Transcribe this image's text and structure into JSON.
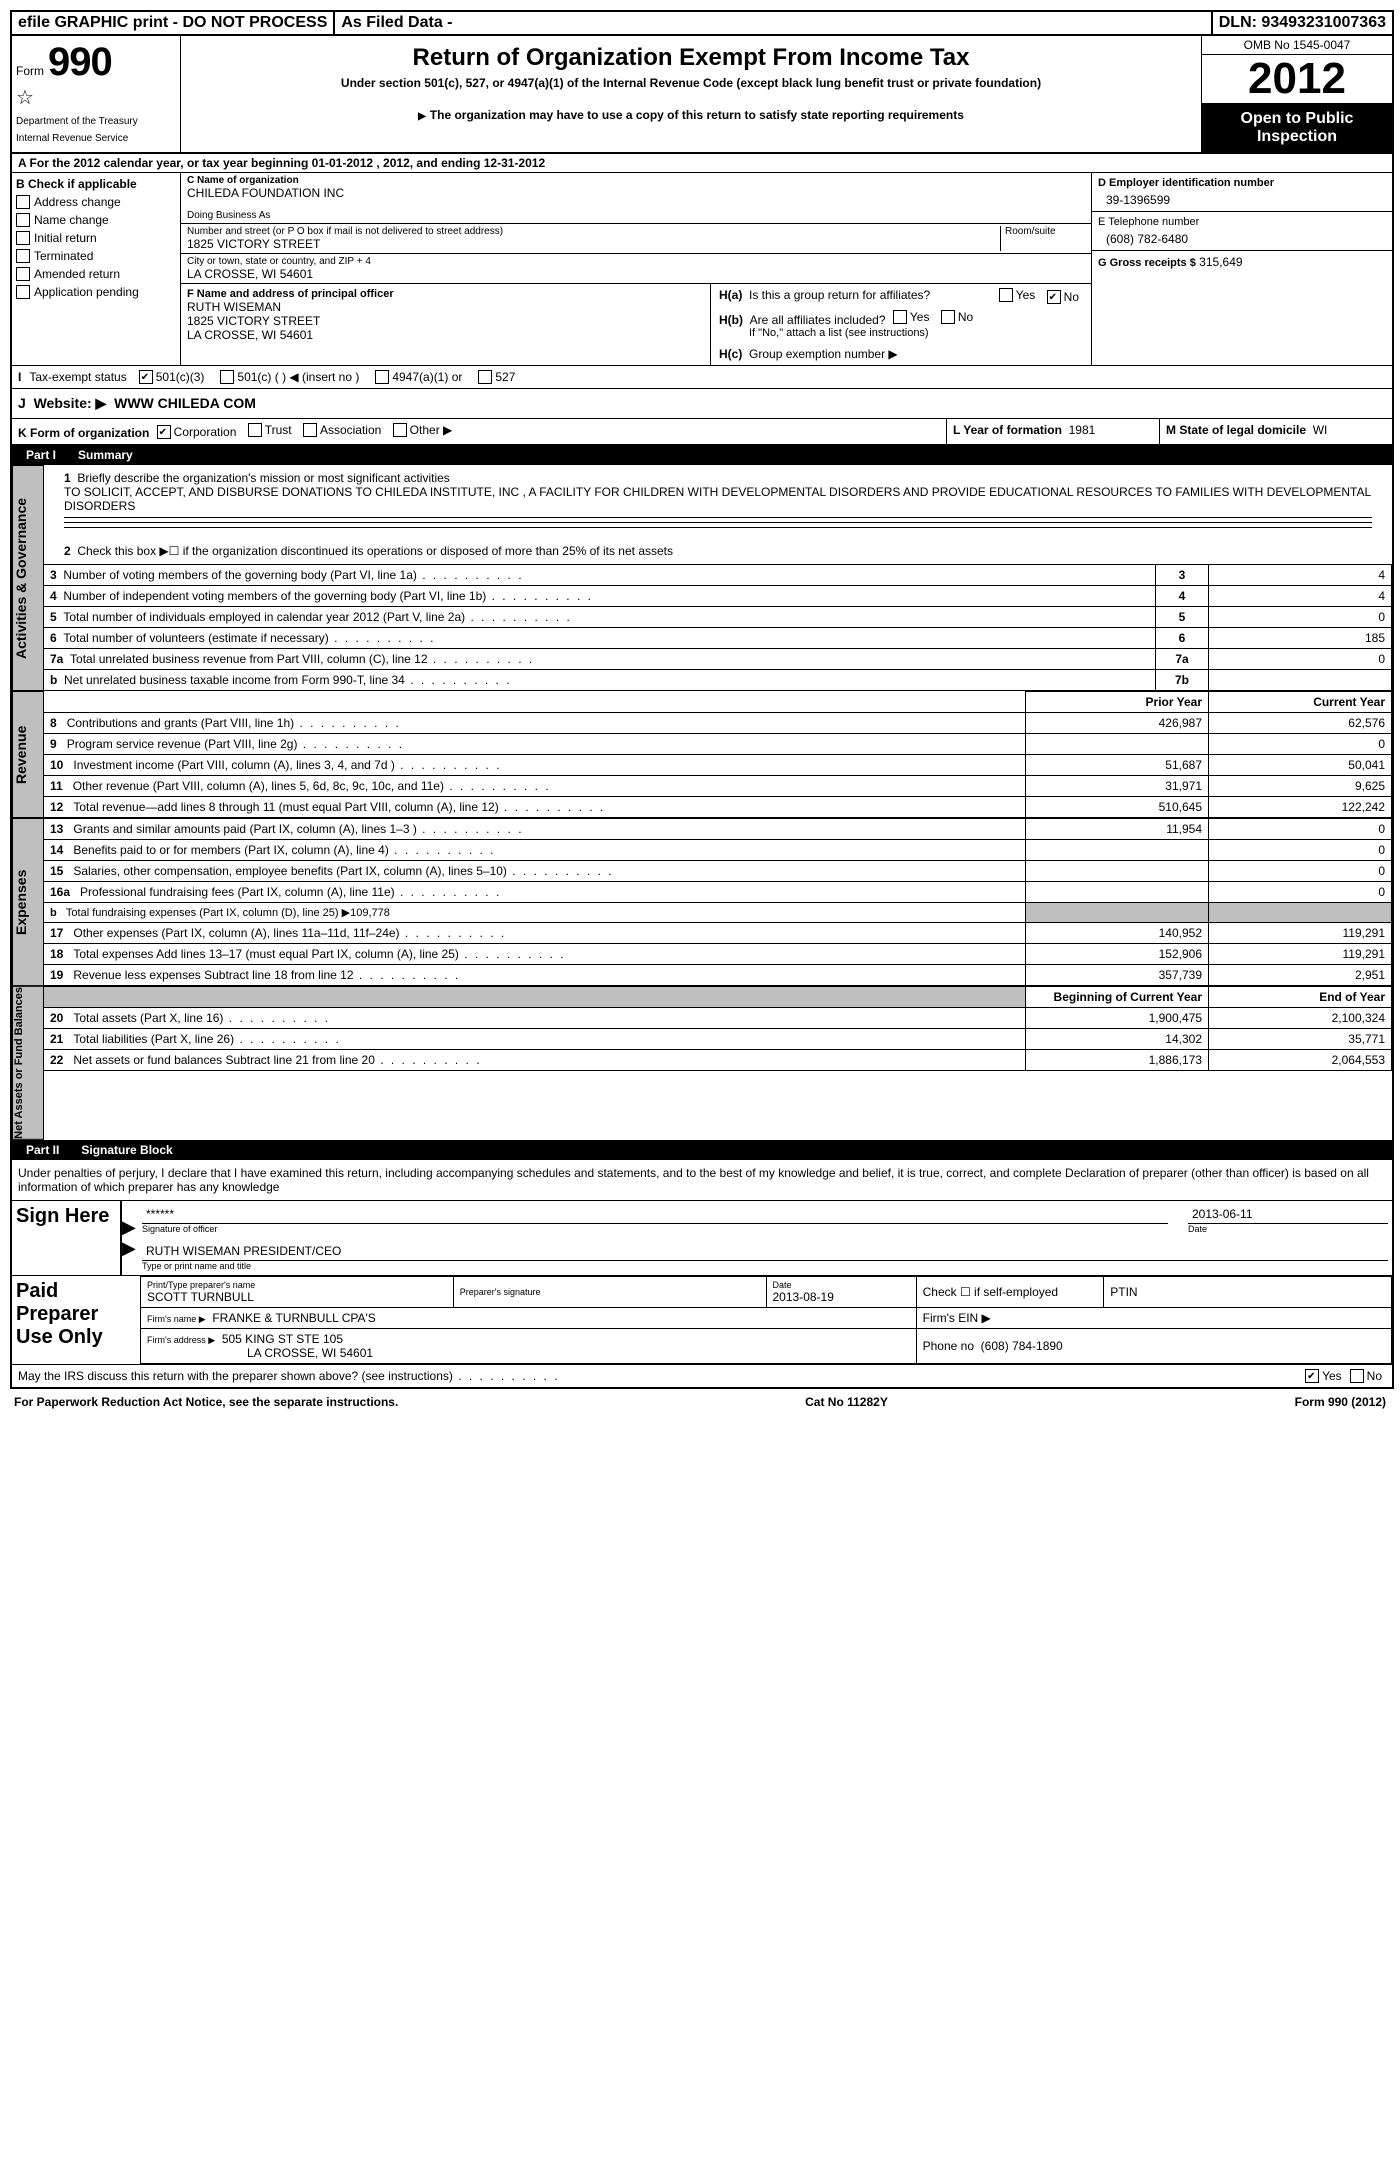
{
  "topbar": {
    "graphic": "efile GRAPHIC print - DO NOT PROCESS",
    "asfiled": "As Filed Data -",
    "dln_label": "DLN:",
    "dln": "93493231007363"
  },
  "header": {
    "form_label": "Form",
    "form_num": "990",
    "dept1": "Department of the Treasury",
    "dept2": "Internal Revenue Service",
    "title": "Return of Organization Exempt From Income Tax",
    "subtitle": "Under section 501(c), 527, or 4947(a)(1) of the Internal Revenue Code (except black lung benefit trust or private foundation)",
    "note": "The organization may have to use a copy of this return to satisfy state reporting requirements",
    "omb": "OMB No 1545-0047",
    "year": "2012",
    "inspection1": "Open to Public",
    "inspection2": "Inspection"
  },
  "rowA": "A  For the 2012 calendar year, or tax year beginning 01-01-2012    , 2012, and ending 12-31-2012",
  "colB": {
    "header": "B  Check if applicable",
    "items": [
      "Address change",
      "Name change",
      "Initial return",
      "Terminated",
      "Amended return",
      "Application pending"
    ]
  },
  "colC": {
    "c_label": "C Name of organization",
    "c_name": "CHILEDA FOUNDATION INC",
    "dba_label": "Doing Business As",
    "dba": "",
    "addr_label": "Number and street (or P O  box if mail is not delivered to street address)",
    "room_label": "Room/suite",
    "addr": "1825 VICTORY STREET",
    "city_label": "City or town, state or country, and ZIP + 4",
    "city": "LA CROSSE, WI  54601",
    "f_label": "F   Name and address of principal officer",
    "f_name": "RUTH WISEMAN",
    "f_addr1": "1825 VICTORY STREET",
    "f_addr2": "LA CROSSE, WI  54601"
  },
  "colD": {
    "d_label": "D Employer identification number",
    "d_val": "39-1396599",
    "e_label": "E Telephone number",
    "e_val": "(608) 782-6480",
    "g_label": "G Gross receipts $",
    "g_val": "315,649"
  },
  "secH": {
    "ha_label": "H(a)",
    "ha_text": "Is this a group return for affiliates?",
    "hb_label": "H(b)",
    "hb_text": "Are all affiliates included?",
    "hb_note": "If \"No,\" attach a list  (see instructions)",
    "hc_label": "H(c)",
    "hc_text": "Group exemption number ▶",
    "yes": "Yes",
    "no": "No"
  },
  "taxexempt": {
    "i_label": "I",
    "label": "Tax-exempt status",
    "opt1": "501(c)(3)",
    "opt2": "501(c) (   ) ◀ (insert no )",
    "opt3": "4947(a)(1) or",
    "opt4": "527"
  },
  "website": {
    "j_label": "J",
    "label": "Website: ▶",
    "val": "WWW CHILEDA COM"
  },
  "formorg": {
    "k_label": "K Form of organization",
    "opts": [
      "Corporation",
      "Trust",
      "Association",
      "Other ▶"
    ],
    "l_label": "L Year of formation",
    "l_val": "1981",
    "m_label": "M State of legal domicile",
    "m_val": "WI"
  },
  "part1": {
    "num": "Part I",
    "title": "Summary",
    "side_gov": "Activities & Governance",
    "side_rev": "Revenue",
    "side_exp": "Expenses",
    "side_net": "Net Assets or Fund Balances",
    "q1": "Briefly describe the organization's mission or most significant activities",
    "q1_ans": "TO SOLICIT, ACCEPT, AND DISBURSE DONATIONS TO CHILEDA INSTITUTE, INC , A FACILITY FOR CHILDREN WITH DEVELOPMENTAL DISORDERS AND PROVIDE EDUCATIONAL RESOURCES TO FAMILIES WITH DEVELOPMENTAL DISORDERS",
    "q2": "Check this box ▶☐ if the organization discontinued its operations or disposed of more than 25% of its net assets",
    "lines_gov": [
      {
        "n": "3",
        "t": "Number of voting members of the governing body (Part VI, line 1a)",
        "box": "3",
        "v": "4"
      },
      {
        "n": "4",
        "t": "Number of independent voting members of the governing body (Part VI, line 1b)",
        "box": "4",
        "v": "4"
      },
      {
        "n": "5",
        "t": "Total number of individuals employed in calendar year 2012 (Part V, line 2a)",
        "box": "5",
        "v": "0"
      },
      {
        "n": "6",
        "t": "Total number of volunteers (estimate if necessary)",
        "box": "6",
        "v": "185"
      },
      {
        "n": "7a",
        "t": "Total unrelated business revenue from Part VIII, column (C), line 12",
        "box": "7a",
        "v": "0"
      },
      {
        "n": "b",
        "t": "Net unrelated business taxable income from Form 990-T, line 34",
        "box": "7b",
        "v": ""
      }
    ],
    "hdr_prior": "Prior Year",
    "hdr_curr": "Current Year",
    "lines_rev": [
      {
        "n": "8",
        "t": "Contributions and grants (Part VIII, line 1h)",
        "p": "426,987",
        "c": "62,576"
      },
      {
        "n": "9",
        "t": "Program service revenue (Part VIII, line 2g)",
        "p": "",
        "c": "0"
      },
      {
        "n": "10",
        "t": "Investment income (Part VIII, column (A), lines 3, 4, and 7d )",
        "p": "51,687",
        "c": "50,041"
      },
      {
        "n": "11",
        "t": "Other revenue (Part VIII, column (A), lines 5, 6d, 8c, 9c, 10c, and 11e)",
        "p": "31,971",
        "c": "9,625"
      },
      {
        "n": "12",
        "t": "Total revenue—add lines 8 through 11 (must equal Part VIII, column (A), line 12)",
        "p": "510,645",
        "c": "122,242"
      }
    ],
    "lines_exp": [
      {
        "n": "13",
        "t": "Grants and similar amounts paid (Part IX, column (A), lines 1–3 )",
        "p": "11,954",
        "c": "0"
      },
      {
        "n": "14",
        "t": "Benefits paid to or for members (Part IX, column (A), line 4)",
        "p": "",
        "c": "0"
      },
      {
        "n": "15",
        "t": "Salaries, other compensation, employee benefits (Part IX, column (A), lines 5–10)",
        "p": "",
        "c": "0"
      },
      {
        "n": "16a",
        "t": "Professional fundraising fees (Part IX, column (A), line 11e)",
        "p": "",
        "c": "0"
      },
      {
        "n": "b",
        "t": "Total fundraising expenses (Part IX, column (D), line 25) ▶109,778",
        "p": "gray",
        "c": "gray"
      },
      {
        "n": "17",
        "t": "Other expenses (Part IX, column (A), lines 11a–11d, 11f–24e)",
        "p": "140,952",
        "c": "119,291"
      },
      {
        "n": "18",
        "t": "Total expenses  Add lines 13–17 (must equal Part IX, column (A), line 25)",
        "p": "152,906",
        "c": "119,291"
      },
      {
        "n": "19",
        "t": "Revenue less expenses  Subtract line 18 from line 12",
        "p": "357,739",
        "c": "2,951"
      }
    ],
    "hdr_begin": "Beginning of Current Year",
    "hdr_end": "End of Year",
    "lines_net": [
      {
        "n": "20",
        "t": "Total assets (Part X, line 16)",
        "p": "1,900,475",
        "c": "2,100,324"
      },
      {
        "n": "21",
        "t": "Total liabilities (Part X, line 26)",
        "p": "14,302",
        "c": "35,771"
      },
      {
        "n": "22",
        "t": "Net assets or fund balances  Subtract line 21 from line 20",
        "p": "1,886,173",
        "c": "2,064,553"
      }
    ]
  },
  "part2": {
    "num": "Part II",
    "title": "Signature Block",
    "perjury": "Under penalties of perjury, I declare that I have examined this return, including accompanying schedules and statements, and to the best of my knowledge and belief, it is true, correct, and complete  Declaration of preparer (other than officer) is based on all information of which preparer has any knowledge",
    "sign_here": "Sign Here",
    "sig_stars": "******",
    "sig_of_officer": "Signature of officer",
    "sig_date": "2013-06-11",
    "date_label": "Date",
    "officer_name": "RUTH WISEMAN PRESIDENT/CEO",
    "officer_label": "Type or print name and title",
    "paid_prep": "Paid Preparer Use Only",
    "prep_name_label": "Print/Type preparer's name",
    "prep_name": "SCOTT TURNBULL",
    "prep_sig_label": "Preparer's signature",
    "prep_date_label": "Date",
    "prep_date": "2013-08-19",
    "self_emp": "Check ☐ if self-employed",
    "ptin": "PTIN",
    "firm_name_label": "Firm's name   ▶",
    "firm_name": "FRANKE & TURNBULL CPA'S",
    "firm_ein": "Firm's EIN ▶",
    "firm_addr_label": "Firm's address ▶",
    "firm_addr1": "505 KING ST STE 105",
    "firm_addr2": "LA CROSSE, WI  54601",
    "phone_label": "Phone no",
    "phone": "(608) 784-1890",
    "discuss": "May the IRS discuss this return with the preparer shown above? (see instructions)"
  },
  "footer": {
    "pra": "For Paperwork Reduction Act Notice, see the separate instructions.",
    "cat": "Cat No  11282Y",
    "form": "Form 990 (2012)"
  },
  "style": {
    "colors": {
      "black": "#000000",
      "white": "#ffffff",
      "gray": "#bfbfbf"
    },
    "fontsizes": {
      "body": 12,
      "form_number": 40,
      "year": 44,
      "title": 24
    }
  }
}
